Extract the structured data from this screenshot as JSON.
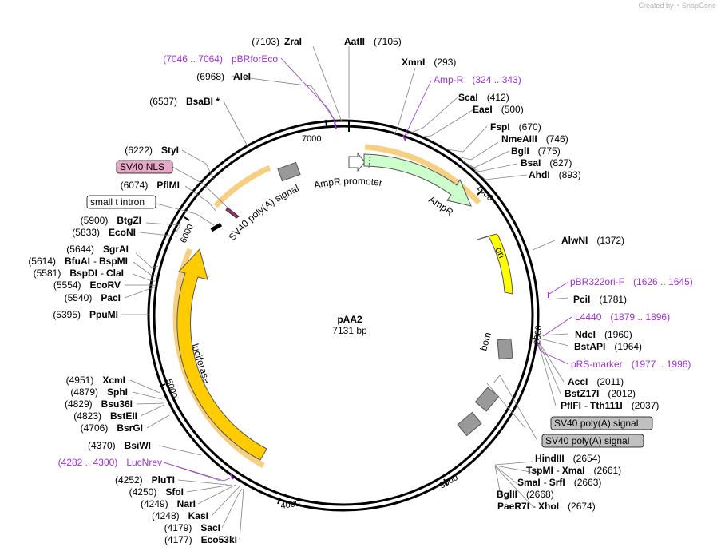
{
  "credit": {
    "prefix": "Created by",
    "brand": "SnapGene"
  },
  "plasmid": {
    "name": "pAA2",
    "length_label": "7131 bp"
  },
  "colors": {
    "primer": "#9933cc",
    "ampr_fill": "#ccffcc",
    "ori_fill": "#ffff00",
    "luciferase_fill": "#ffcc00",
    "misc_fill": "#999999",
    "nls_fill": "#993366"
  },
  "ticks": [
    {
      "label": "1000",
      "bp": 1000
    },
    {
      "label": "2000",
      "bp": 2000
    },
    {
      "label": "3000",
      "bp": 3000
    },
    {
      "label": "4000",
      "bp": 4000
    },
    {
      "label": "5000",
      "bp": 5000
    },
    {
      "label": "6000",
      "bp": 6000
    },
    {
      "label": "7000",
      "bp": 7000
    }
  ],
  "features": [
    {
      "id": "ampr-promoter",
      "label": "AmpR promoter"
    },
    {
      "id": "ampr",
      "label": "AmpR"
    },
    {
      "id": "ori",
      "label": "ori"
    },
    {
      "id": "bom",
      "label": "bom"
    },
    {
      "id": "luciferase",
      "label": "luciferase"
    },
    {
      "id": "sv40-polya-inner",
      "label": "SV40 poly(A) signal"
    }
  ],
  "boxed": [
    {
      "id": "sv40-nls",
      "label": "SV40 NLS"
    },
    {
      "id": "small-t-intron",
      "label": "small t intron"
    },
    {
      "id": "sv40-polya-1",
      "label": "SV40 poly(A) signal"
    },
    {
      "id": "sv40-polya-2",
      "label": "SV40 poly(A) signal"
    }
  ],
  "sites": {
    "zrai": {
      "pos": "(7103)",
      "name": "ZraI"
    },
    "aatii": {
      "pos": "(7105)",
      "name": "AatII"
    },
    "pbrforeco": {
      "pos": "(7046 .. 7064)",
      "name": "pBRforEco"
    },
    "alei": {
      "pos": "(6968)",
      "name": "AleI"
    },
    "bsabi": {
      "pos": "(6537)",
      "name": "BsaBI *"
    },
    "styi": {
      "pos": "(6222)",
      "name": "StyI"
    },
    "pflmi": {
      "pos": "(6074)",
      "name": "PflMI"
    },
    "btgzi": {
      "pos": "(5900)",
      "name": "BtgZI"
    },
    "econi": {
      "pos": "(5833)",
      "name": "EcoNI"
    },
    "sgrai": {
      "pos": "(5644)",
      "name": "SgrAI"
    },
    "bfuai": {
      "pos": "(5614)",
      "name": "BfuAI",
      "sep": "-",
      "name2": "BspMI"
    },
    "bspdi": {
      "pos": "(5581)",
      "name": "BspDI",
      "sep": "-",
      "name2": "ClaI"
    },
    "ecorv": {
      "pos": "(5554)",
      "name": "EcoRV"
    },
    "paci": {
      "pos": "(5540)",
      "name": "PacI"
    },
    "ppumi": {
      "pos": "(5395)",
      "name": "PpuMI"
    },
    "xcmi": {
      "pos": "(4951)",
      "name": "XcmI"
    },
    "sphi": {
      "pos": "(4879)",
      "name": "SphI"
    },
    "bsu36i": {
      "pos": "(4829)",
      "name": "Bsu36I"
    },
    "bsteii": {
      "pos": "(4823)",
      "name": "BstEII"
    },
    "bsrgi": {
      "pos": "(4706)",
      "name": "BsrGI"
    },
    "bsiwi": {
      "pos": "(4370)",
      "name": "BsiWI"
    },
    "lucnrev": {
      "pos": "(4282 .. 4300)",
      "name": "LucNrev"
    },
    "pluti": {
      "pos": "(4252)",
      "name": "PluTI"
    },
    "sfoi": {
      "pos": "(4250)",
      "name": "SfoI"
    },
    "nari": {
      "pos": "(4249)",
      "name": "NarI"
    },
    "kasi": {
      "pos": "(4248)",
      "name": "KasI"
    },
    "saci": {
      "pos": "(4179)",
      "name": "SacI"
    },
    "eco53ki": {
      "pos": "(4177)",
      "name": "Eco53kI"
    },
    "xmni": {
      "name": "XmnI",
      "pos": "(293)"
    },
    "ampr_primer": {
      "name": "Amp-R",
      "pos": "(324 .. 343)"
    },
    "scai": {
      "name": "ScaI",
      "pos": "(412)"
    },
    "eaei": {
      "name": "EaeI",
      "pos": "(500)"
    },
    "fspi": {
      "name": "FspI",
      "pos": "(670)"
    },
    "nmeaiii": {
      "name": "NmeAIII",
      "pos": "(746)"
    },
    "bgli": {
      "name": "BglI",
      "pos": "(775)"
    },
    "bsai": {
      "name": "BsaI",
      "pos": "(827)"
    },
    "ahdi": {
      "name": "AhdI",
      "pos": "(893)"
    },
    "alwni": {
      "name": "AlwNI",
      "pos": "(1372)"
    },
    "pbr322ori": {
      "name": "pBR322ori-F",
      "pos": "(1626 .. 1645)"
    },
    "pcii": {
      "name": "PciI",
      "pos": "(1781)"
    },
    "l4440": {
      "name": "L4440",
      "pos": "(1879 .. 1896)"
    },
    "ndei": {
      "name": "NdeI",
      "pos": "(1960)"
    },
    "bstapi": {
      "name": "BstAPI",
      "pos": "(1964)"
    },
    "prsmarker": {
      "name": "pRS-marker",
      "pos": "(1977 .. 1996)"
    },
    "acci": {
      "name": "AccI",
      "pos": "(2011)"
    },
    "bstz17i": {
      "name": "BstZ17I",
      "pos": "(2012)"
    },
    "pflfi": {
      "name": "PflFI",
      "sep": "-",
      "name2": "Tth111I",
      "pos": "(2037)"
    },
    "hindiii": {
      "name": "HindIII",
      "pos": "(2654)"
    },
    "tspmi": {
      "name": "TspMI",
      "sep": "-",
      "name2": "XmaI",
      "pos": "(2661)"
    },
    "smai": {
      "name": "SmaI",
      "sep": "-",
      "name2": "SrfI",
      "pos": "(2663)"
    },
    "bglii": {
      "name": "BglII",
      "pos": "(2668)"
    },
    "paer7i": {
      "name": "PaeR7I",
      "sep": "-",
      "name2": "XhoI",
      "pos": "(2674)"
    }
  }
}
